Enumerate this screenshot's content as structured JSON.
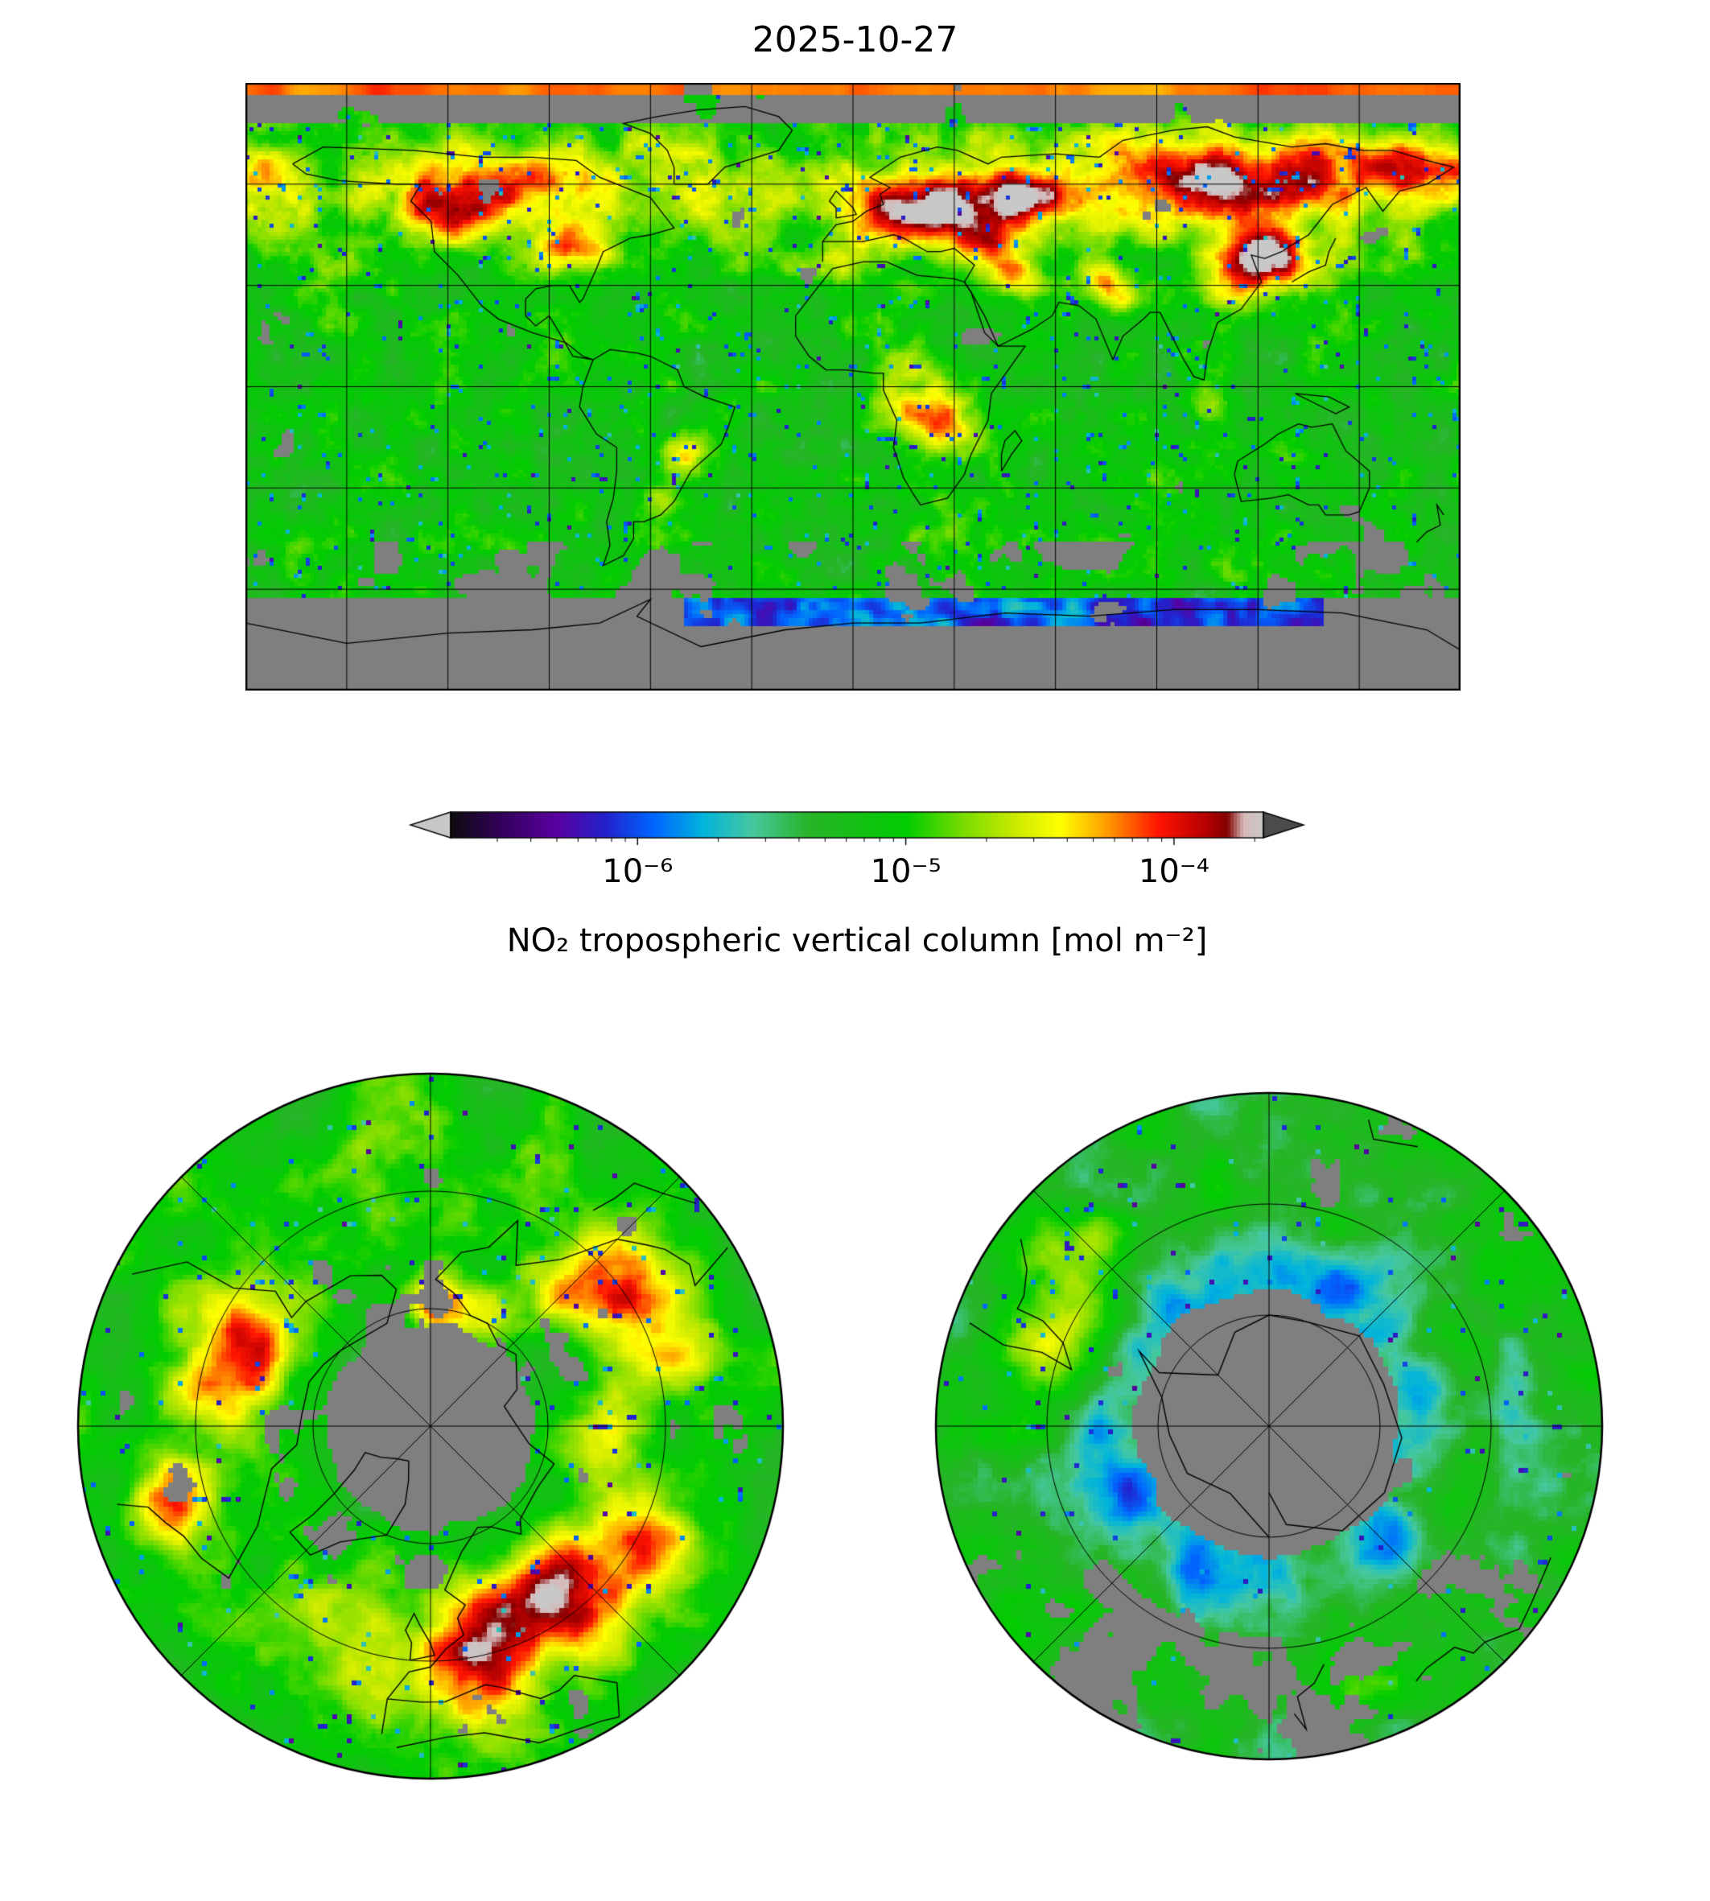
{
  "figure": {
    "title": "2025-10-27",
    "colorbar": {
      "label": "NO₂ tropospheric vertical column [mol m⁻²]",
      "orientation": "horizontal",
      "scale": "log",
      "extend": "both",
      "ticks": [
        {
          "label": "10⁻⁶",
          "pos": 0.23
        },
        {
          "label": "10⁻⁵",
          "pos": 0.56
        },
        {
          "label": "10⁻⁴",
          "pos": 0.89
        }
      ]
    }
  },
  "chart_data": {
    "type": "heatmap",
    "title": "2025-10-27",
    "variable": "NO₂ tropospheric vertical column",
    "units": "mol m⁻²",
    "color_scale": "log",
    "colorbar_ticks": [
      "1e-6",
      "1e-5",
      "1e-4"
    ],
    "no_data_color": "#7f7f7f",
    "panels": [
      {
        "name": "global",
        "projection": "equirectangular",
        "lon_range": [
          -180,
          180
        ],
        "lat_range": [
          -90,
          90
        ],
        "gridline_spacing_deg": 30
      },
      {
        "name": "north-polar",
        "projection": "north polar azimuthal",
        "lat_min": 30,
        "meridian_spacing_deg": 45
      },
      {
        "name": "south-polar",
        "projection": "south polar azimuthal",
        "lat_max": -30,
        "meridian_spacing_deg": 45
      }
    ],
    "high_value_regions": [
      "Europe",
      "Eastern Europe / western Russia",
      "East China",
      "Northern India",
      "Middle East",
      "Central Africa",
      "Southeast Brazil",
      "Eastern North America",
      "Canadian / Siberian high-latitude band",
      "thin red stripe at top map edge (~88N)"
    ],
    "low_value_regions": [
      "blue/purple arc along Antarctic coast (~63-70S)",
      "scattered purple speckles at swath edges"
    ],
    "no_data_regions": [
      "polar night cap around North Pole (gray disc in north-polar panel)",
      "Antarctica interior",
      "high Arctic band 78-86N",
      "scattered gray patches over Southern Ocean"
    ]
  },
  "render": {
    "background": "#ffffff",
    "gray": "#7f7f7f",
    "under_color": "#c8c8c8",
    "over_color": "#4b4b4b",
    "colormap": [
      [
        0.0,
        "#0d0d0d"
      ],
      [
        0.06,
        "#32005a"
      ],
      [
        0.13,
        "#5a00a0"
      ],
      [
        0.19,
        "#2222cc"
      ],
      [
        0.25,
        "#0066ff"
      ],
      [
        0.31,
        "#00b4dc"
      ],
      [
        0.37,
        "#46c8a0"
      ],
      [
        0.44,
        "#28b428"
      ],
      [
        0.56,
        "#00cc00"
      ],
      [
        0.63,
        "#78dc00"
      ],
      [
        0.7,
        "#d2ec00"
      ],
      [
        0.75,
        "#ffff00"
      ],
      [
        0.81,
        "#ff9600"
      ],
      [
        0.87,
        "#ff1400"
      ],
      [
        0.93,
        "#b40000"
      ],
      [
        0.955,
        "#820000"
      ],
      [
        0.975,
        "#d7b9b9"
      ],
      [
        1.0,
        "#c8c8c8"
      ]
    ],
    "hotspots_global": [
      [
        15,
        50,
        7,
        0.3
      ],
      [
        33,
        52,
        7,
        0.3
      ],
      [
        48,
        55,
        5,
        0.2
      ],
      [
        38,
        43,
        4,
        0.18
      ],
      [
        55,
        57,
        5,
        0.18
      ],
      [
        115,
        34,
        7,
        0.3
      ],
      [
        123,
        41,
        5,
        0.22
      ],
      [
        129,
        36,
        4,
        0.18
      ],
      [
        138,
        36,
        4,
        0.16
      ],
      [
        79,
        27,
        5,
        0.22
      ],
      [
        73,
        31,
        4,
        0.18
      ],
      [
        45,
        34,
        5,
        0.2
      ],
      [
        52,
        30,
        4,
        0.16
      ],
      [
        20,
        -4,
        9,
        0.24
      ],
      [
        28,
        -14,
        6,
        0.18
      ],
      [
        -49,
        -21,
        5,
        0.22
      ],
      [
        -58,
        -34,
        3,
        0.14
      ],
      [
        -79,
        41,
        5,
        0.2
      ],
      [
        -87,
        41,
        4,
        0.16
      ],
      [
        -100,
        57,
        9,
        0.22
      ],
      [
        -120,
        52,
        6,
        0.18
      ],
      [
        95,
        62,
        9,
        0.24
      ],
      [
        120,
        58,
        8,
        0.2
      ],
      [
        150,
        63,
        7,
        0.18
      ],
      [
        -5,
        35,
        4,
        0.12
      ],
      [
        105,
        -6,
        4,
        0.14
      ],
      [
        170,
        66,
        5,
        0.15
      ]
    ],
    "hotspots_north": [
      [
        12,
        52,
        0.13,
        0.34
      ],
      [
        38,
        54,
        0.11,
        0.3
      ],
      [
        60,
        50,
        0.1,
        0.22
      ],
      [
        120,
        47,
        0.11,
        0.26
      ],
      [
        135,
        55,
        0.09,
        0.2
      ],
      [
        -115,
        56,
        0.11,
        0.26
      ],
      [
        -98,
        50,
        0.08,
        0.18
      ],
      [
        -75,
        43,
        0.09,
        0.2
      ],
      [
        178,
        69,
        0.06,
        0.32
      ],
      [
        155,
        68,
        0.06,
        0.22
      ],
      [
        85,
        62,
        0.08,
        0.18
      ]
    ],
    "hotspots_south": [
      [
        -66,
        -50,
        0.12,
        0.26
      ],
      [
        -45,
        -42,
        0.09,
        0.14
      ],
      [
        160,
        -42,
        0.08,
        0.1
      ]
    ]
  }
}
